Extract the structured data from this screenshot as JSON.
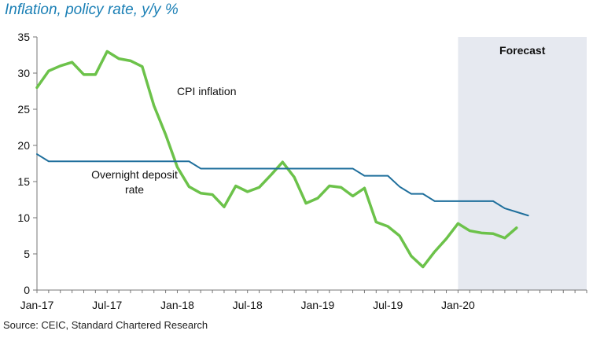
{
  "title": "Inflation, policy rate, y/y %",
  "source": "Source: CEIC, Standard Chartered Research",
  "forecast_label": "Forecast",
  "chart_data": {
    "type": "line",
    "title": "Inflation, policy rate, y/y %",
    "xlabel": "",
    "ylabel": "",
    "ylim": [
      0,
      35
    ],
    "yticks": [
      0,
      5,
      10,
      15,
      20,
      25,
      30,
      35
    ],
    "x_tick_labels": [
      "Jan-17",
      "Jul-17",
      "Jan-18",
      "Jul-18",
      "Jan-19",
      "Jul-19",
      "Jan-20"
    ],
    "x_start": "Jan-17",
    "x_end": "Dec-20",
    "forecast_start": "Jan-20",
    "grid": false,
    "series": [
      {
        "name": "CPI inflation",
        "color": "#6cc24a",
        "values": [
          28.0,
          30.3,
          31.0,
          31.5,
          29.8,
          29.8,
          33.0,
          32.0,
          31.7,
          30.9,
          25.5,
          21.5,
          17.0,
          14.3,
          13.4,
          13.2,
          11.5,
          14.4,
          13.6,
          14.2,
          15.9,
          17.7,
          15.6,
          12.0,
          12.7,
          14.4,
          14.2,
          13.0,
          14.1,
          9.4,
          8.8,
          7.5,
          4.7,
          3.2,
          5.3,
          7.1,
          9.2,
          8.2,
          7.9,
          7.8,
          7.2,
          8.6
        ]
      },
      {
        "name": "Overnight deposit rate",
        "color": "#1f6f9c",
        "values": [
          18.8,
          17.8,
          17.8,
          17.8,
          17.8,
          17.8,
          17.8,
          17.8,
          17.8,
          17.8,
          17.8,
          17.8,
          17.8,
          17.8,
          16.8,
          16.8,
          16.8,
          16.8,
          16.8,
          16.8,
          16.8,
          16.8,
          16.8,
          16.8,
          16.8,
          16.8,
          16.8,
          16.8,
          15.8,
          15.8,
          15.8,
          14.3,
          13.3,
          13.3,
          12.3,
          12.3,
          12.3,
          12.3,
          12.3,
          12.3,
          11.3,
          10.8,
          10.3
        ]
      }
    ],
    "annotations": [
      {
        "text": "CPI inflation"
      },
      {
        "text": "Overnight deposit"
      },
      {
        "text": "rate"
      }
    ]
  }
}
